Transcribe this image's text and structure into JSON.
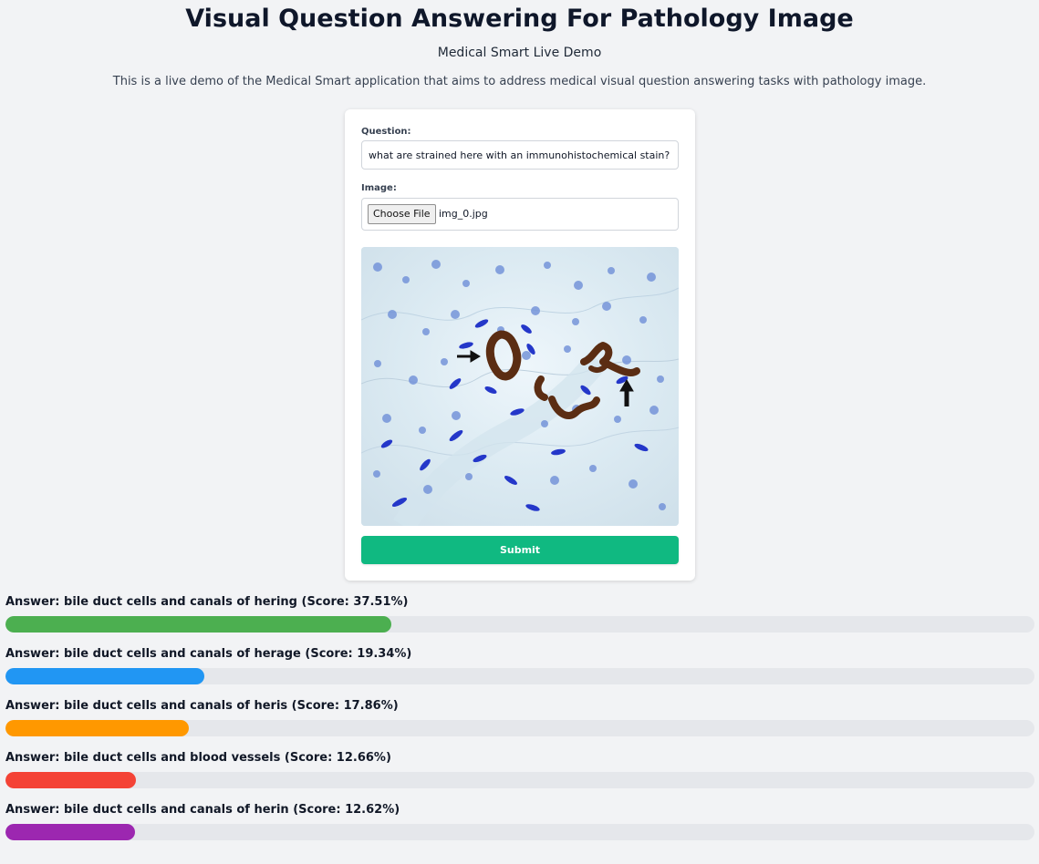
{
  "header": {
    "title": "Visual Question Answering For Pathology Image",
    "subtitle": "Medical Smart Live Demo",
    "description": "This is a live demo of the Medical Smart application that aims to address medical visual question answering tasks with pathology image."
  },
  "form": {
    "question_label": "Question:",
    "question_value": "what are strained here with an immunohistochemical stain?",
    "image_label": "Image:",
    "choose_file_label": "Choose File",
    "file_name": "img_0.jpg",
    "submit_label": "Submit",
    "accent_color": "#10b981"
  },
  "results": [
    {
      "text": "Answer: bile duct cells and canals of hering (Score: 37.51%)",
      "score": 37.51,
      "color": "#4caf50"
    },
    {
      "text": "Answer: bile duct cells and canals of herage (Score: 19.34%)",
      "score": 19.34,
      "color": "#2196f3"
    },
    {
      "text": "Answer: bile duct cells and canals of heris (Score: 17.86%)",
      "score": 17.86,
      "color": "#ff9800"
    },
    {
      "text": "Answer: bile duct cells and blood vessels (Score: 12.66%)",
      "score": 12.66,
      "color": "#f44336"
    },
    {
      "text": "Answer: bile duct cells and canals of herin (Score: 12.62%)",
      "score": 12.62,
      "color": "#9c27b0"
    }
  ]
}
